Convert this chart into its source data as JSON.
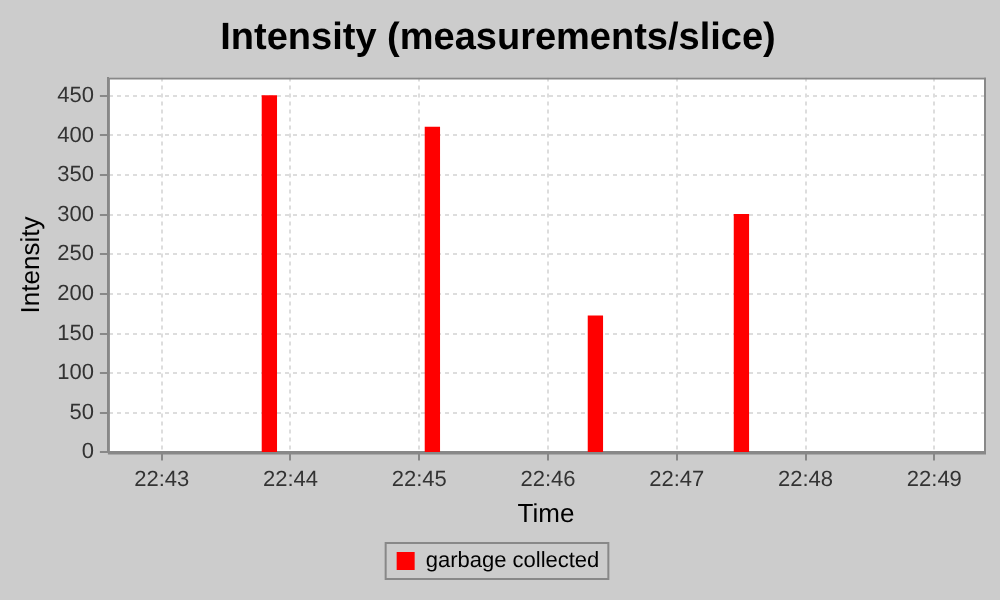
{
  "chart_data": {
    "type": "bar",
    "title": "Intensity (measurements/slice)",
    "xlabel": "Time",
    "ylabel": "Intensity",
    "x": [
      22.7306,
      22.7517,
      22.7728,
      22.7917
    ],
    "series": [
      {
        "name": "garbage collected",
        "color": "#ff0000",
        "values": [
          450,
          410,
          172,
          300
        ]
      }
    ],
    "xlim": [
      22.7097,
      22.8231
    ],
    "xticks": [
      {
        "value": 22.71667,
        "label": "22:43"
      },
      {
        "value": 22.73333,
        "label": "22:44"
      },
      {
        "value": 22.75,
        "label": "22:45"
      },
      {
        "value": 22.76667,
        "label": "22:46"
      },
      {
        "value": 22.78333,
        "label": "22:47"
      },
      {
        "value": 22.8,
        "label": "22:48"
      },
      {
        "value": 22.81667,
        "label": "22:49"
      }
    ],
    "ylim": [
      0,
      473
    ],
    "yticks": [
      0,
      50,
      100,
      150,
      200,
      250,
      300,
      350,
      400,
      450
    ],
    "grid": true,
    "legend": "bottom"
  }
}
